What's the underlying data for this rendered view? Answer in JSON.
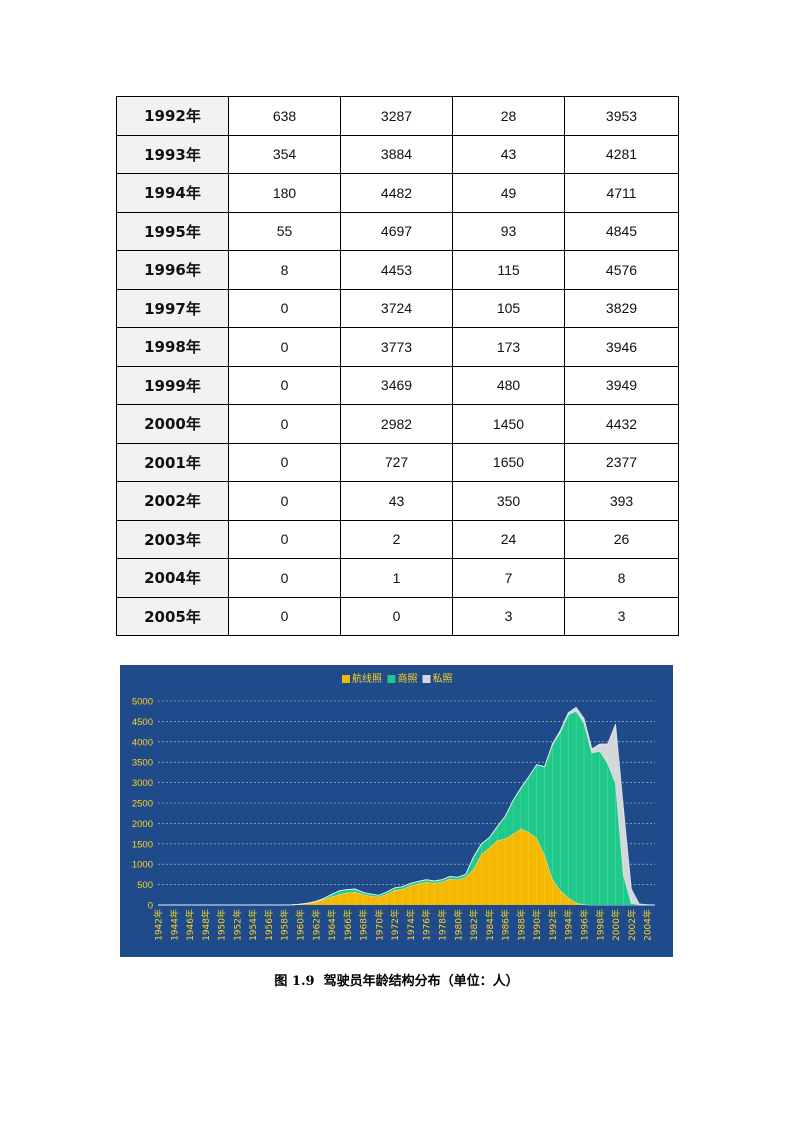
{
  "table": {
    "rows": [
      {
        "year": "1992年",
        "airline": "638",
        "commercial": "3287",
        "private": "28",
        "total": "3953"
      },
      {
        "year": "1993年",
        "airline": "354",
        "commercial": "3884",
        "private": "43",
        "total": "4281"
      },
      {
        "year": "1994年",
        "airline": "180",
        "commercial": "4482",
        "private": "49",
        "total": "4711"
      },
      {
        "year": "1995年",
        "airline": "55",
        "commercial": "4697",
        "private": "93",
        "total": "4845"
      },
      {
        "year": "1996年",
        "airline": "8",
        "commercial": "4453",
        "private": "115",
        "total": "4576"
      },
      {
        "year": "1997年",
        "airline": "0",
        "commercial": "3724",
        "private": "105",
        "total": "3829"
      },
      {
        "year": "1998年",
        "airline": "0",
        "commercial": "3773",
        "private": "173",
        "total": "3946"
      },
      {
        "year": "1999年",
        "airline": "0",
        "commercial": "3469",
        "private": "480",
        "total": "3949"
      },
      {
        "year": "2000年",
        "airline": "0",
        "commercial": "2982",
        "private": "1450",
        "total": "4432"
      },
      {
        "year": "2001年",
        "airline": "0",
        "commercial": "727",
        "private": "1650",
        "total": "2377"
      },
      {
        "year": "2002年",
        "airline": "0",
        "commercial": "43",
        "private": "350",
        "total": "393"
      },
      {
        "year": "2003年",
        "airline": "0",
        "commercial": "2",
        "private": "24",
        "total": "26"
      },
      {
        "year": "2004年",
        "airline": "0",
        "commercial": "1",
        "private": "7",
        "total": "8"
      },
      {
        "year": "2005年",
        "airline": "0",
        "commercial": "0",
        "private": "3",
        "total": "3"
      }
    ]
  },
  "chart_data": {
    "type": "area",
    "stacked": true,
    "x": [
      1942,
      1943,
      1944,
      1945,
      1946,
      1947,
      1948,
      1949,
      1950,
      1951,
      1952,
      1953,
      1954,
      1955,
      1956,
      1957,
      1958,
      1959,
      1960,
      1961,
      1962,
      1963,
      1964,
      1965,
      1966,
      1967,
      1968,
      1969,
      1970,
      1971,
      1972,
      1973,
      1974,
      1975,
      1976,
      1977,
      1978,
      1979,
      1980,
      1981,
      1982,
      1983,
      1984,
      1985,
      1986,
      1987,
      1988,
      1989,
      1990,
      1991,
      1992,
      1993,
      1994,
      1995,
      1996,
      1997,
      1998,
      1999,
      2000,
      2001,
      2002,
      2003,
      2004,
      2005
    ],
    "x_tick_labels": [
      "1942年",
      "1944年",
      "1946年",
      "1948年",
      "1950年",
      "1952年",
      "1954年",
      "1956年",
      "1958年",
      "1960年",
      "1962年",
      "1964年",
      "1966年",
      "1968年",
      "1970年",
      "1972年",
      "1974年",
      "1976年",
      "1978年",
      "1980年",
      "1982年",
      "1984年",
      "1986年",
      "1988年",
      "1990年",
      "1992年",
      "1994年",
      "1996年",
      "1998年",
      "2000年",
      "2002年",
      "2004年"
    ],
    "series": [
      {
        "name": "航线照",
        "color": "#f5b800",
        "values": [
          0,
          0,
          0,
          0,
          0,
          0,
          0,
          0,
          0,
          0,
          0,
          0,
          0,
          0,
          0,
          0,
          0,
          5,
          15,
          40,
          80,
          140,
          200,
          260,
          300,
          320,
          260,
          220,
          200,
          270,
          360,
          390,
          470,
          520,
          560,
          540,
          560,
          640,
          620,
          680,
          880,
          1250,
          1400,
          1580,
          1620,
          1740,
          1870,
          1780,
          1640,
          1230,
          638,
          354,
          180,
          55,
          8,
          0,
          0,
          0,
          0,
          0,
          0,
          0,
          0,
          0
        ]
      },
      {
        "name": "商照",
        "color": "#20c98a",
        "values": [
          0,
          0,
          0,
          0,
          0,
          0,
          0,
          0,
          0,
          0,
          0,
          0,
          0,
          0,
          0,
          0,
          0,
          0,
          5,
          5,
          10,
          20,
          60,
          90,
          80,
          70,
          50,
          50,
          40,
          50,
          60,
          60,
          60,
          60,
          60,
          50,
          60,
          60,
          60,
          70,
          300,
          250,
          250,
          340,
          550,
          820,
          1000,
          1360,
          1800,
          2160,
          3287,
          3884,
          4482,
          4697,
          4453,
          3724,
          3773,
          3469,
          2982,
          727,
          43,
          2,
          1,
          0
        ]
      },
      {
        "name": "私照",
        "color": "#d3d6da",
        "values": [
          0,
          0,
          0,
          0,
          0,
          0,
          0,
          0,
          0,
          0,
          0,
          0,
          0,
          0,
          0,
          0,
          0,
          0,
          0,
          0,
          0,
          0,
          0,
          0,
          0,
          0,
          0,
          0,
          0,
          0,
          0,
          0,
          0,
          0,
          0,
          0,
          0,
          0,
          0,
          0,
          0,
          0,
          0,
          0,
          0,
          0,
          0,
          0,
          0,
          0,
          28,
          43,
          49,
          93,
          115,
          105,
          173,
          480,
          1450,
          1650,
          350,
          24,
          7,
          3
        ]
      }
    ],
    "ylim": [
      0,
      5000
    ],
    "y_ticks": [
      0,
      500,
      1000,
      1500,
      2000,
      2500,
      3000,
      3500,
      4000,
      4500,
      5000
    ],
    "grid": true,
    "legend_position": "top-center",
    "background": "#1f4b8b",
    "text_color": "#ffd21f"
  },
  "caption": {
    "label": "图 1.9",
    "text": "驾驶员年龄结构分布（单位：人）"
  }
}
